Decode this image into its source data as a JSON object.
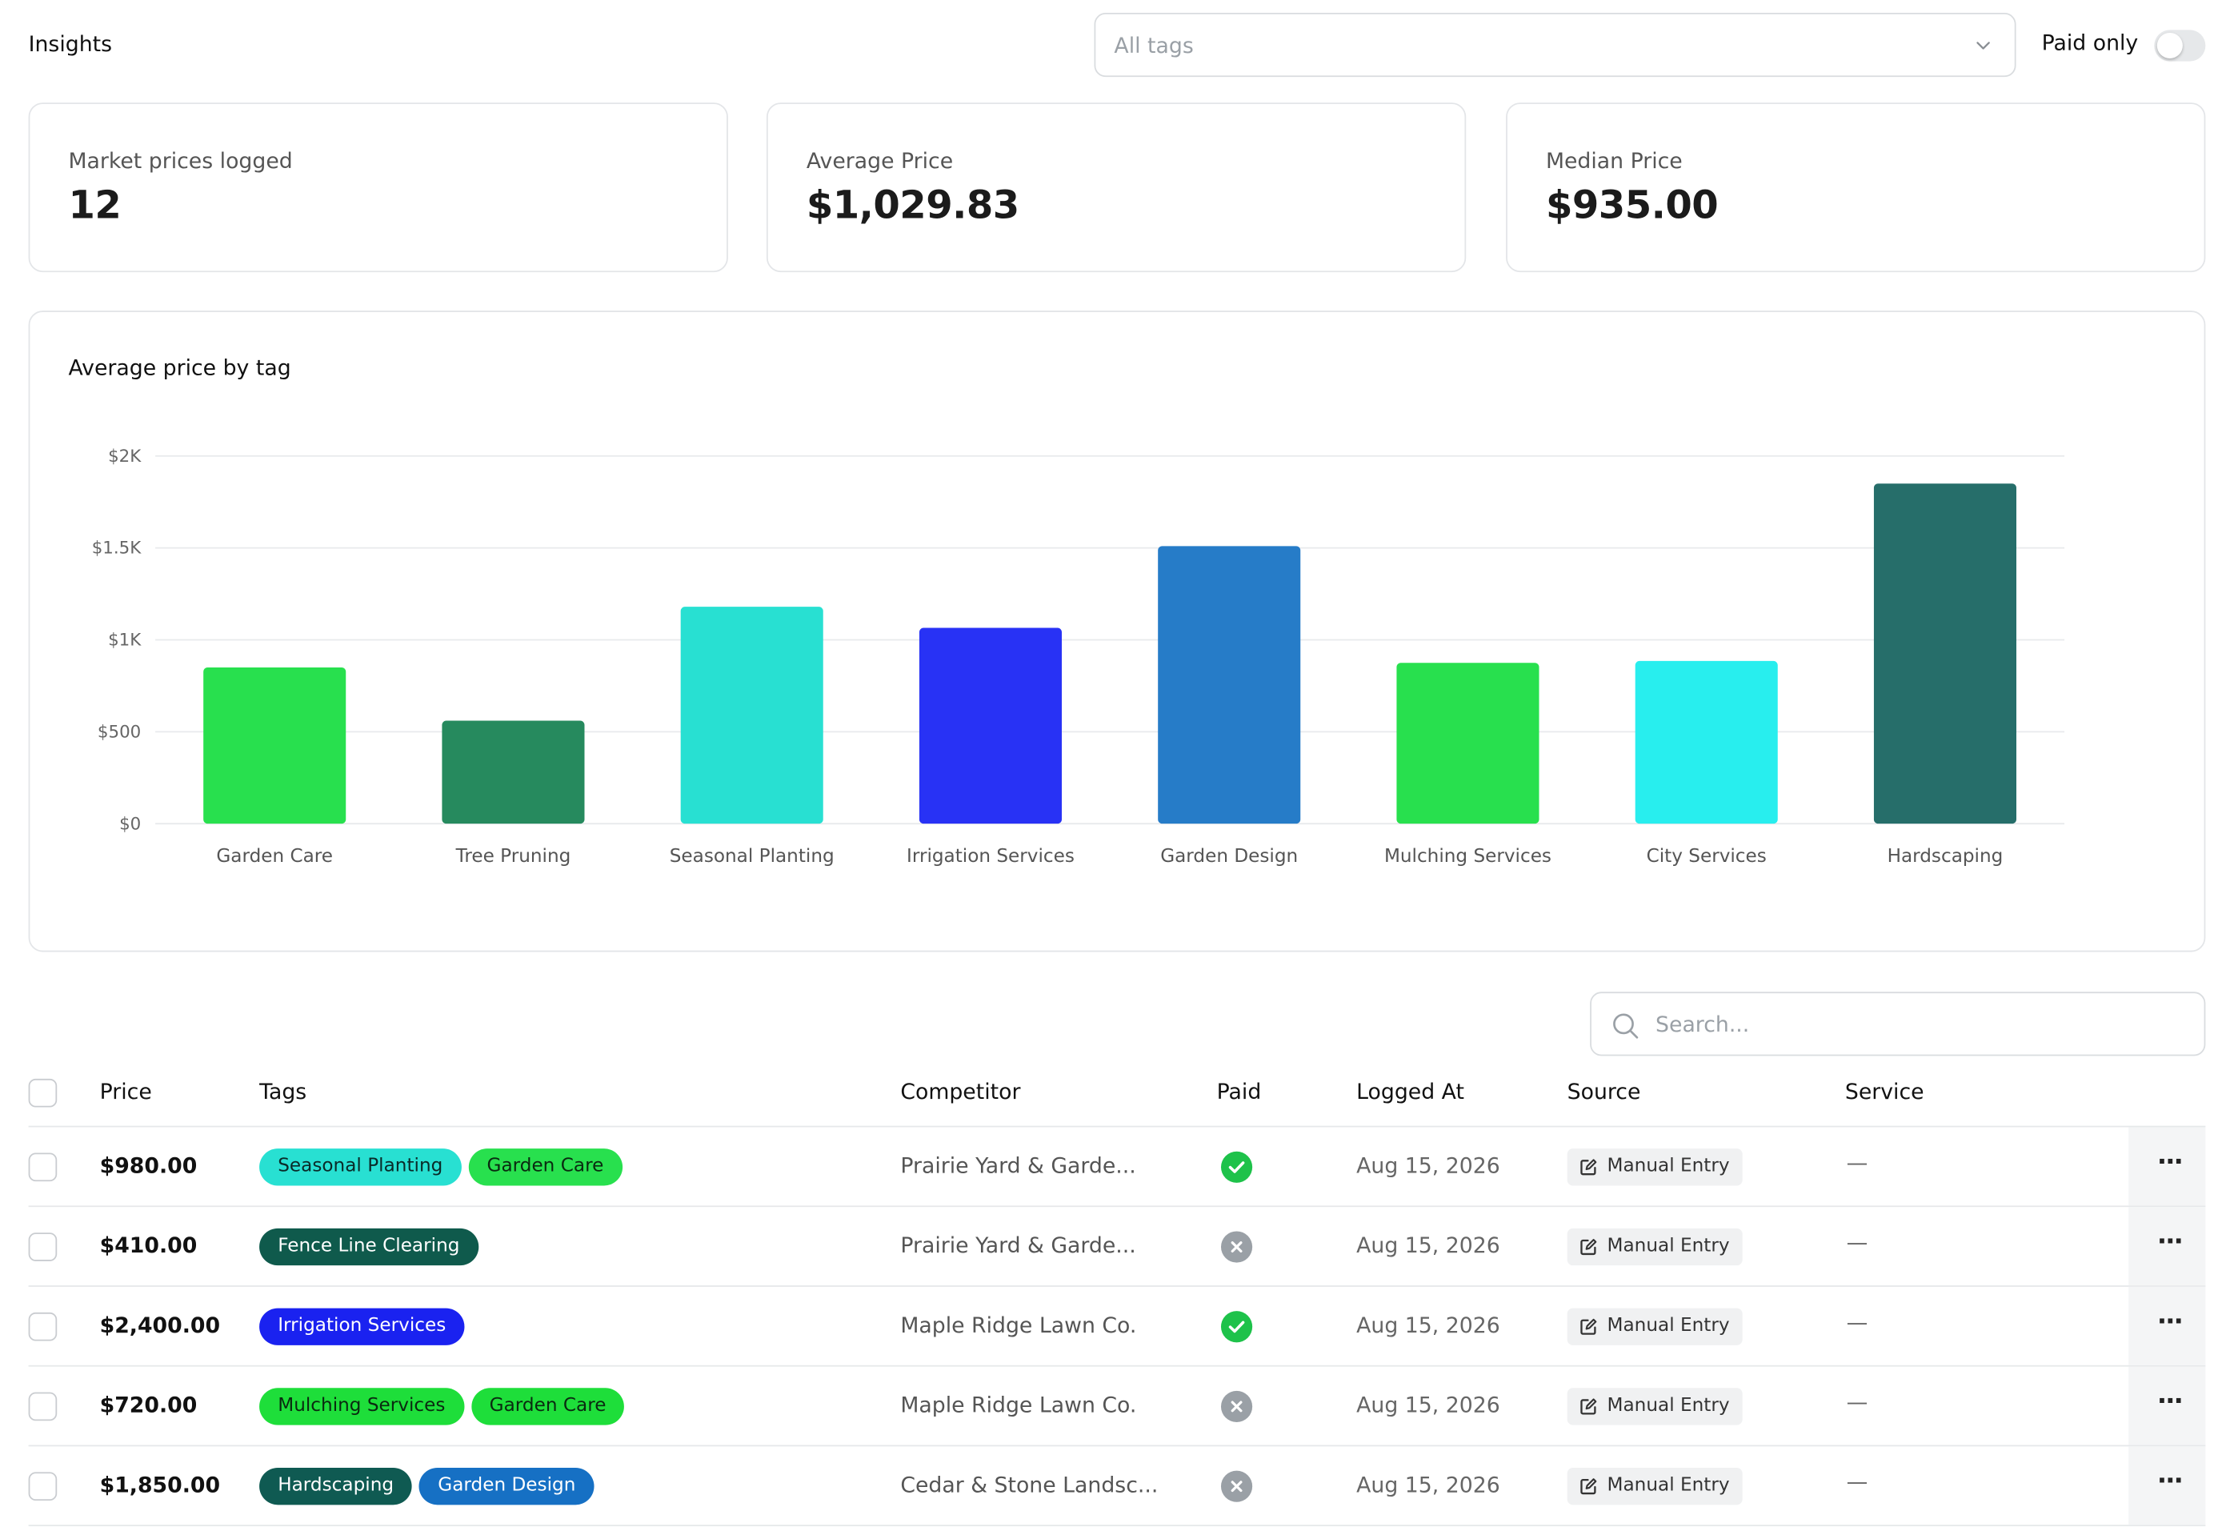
{
  "header": {
    "title": "Insights",
    "tag_filter_placeholder": "All tags",
    "paid_only_label": "Paid only"
  },
  "stats": [
    {
      "label": "Market prices logged",
      "value": "12"
    },
    {
      "label": "Average Price",
      "value": "$1,029.83"
    },
    {
      "label": "Median Price",
      "value": "$935.00"
    }
  ],
  "chart": {
    "title": "Average price by tag"
  },
  "chart_data": {
    "type": "bar",
    "title": "Average price by tag",
    "categories": [
      "Garden Care",
      "Tree Pruning",
      "Seasonal Planting",
      "Irrigation Services",
      "Garden Design",
      "Mulching Services",
      "City Services",
      "Hardscaping"
    ],
    "values": [
      850,
      560,
      1180,
      1065,
      1510,
      875,
      885,
      1850
    ],
    "colors": [
      "#28e04e",
      "#268a5e",
      "#28e0d2",
      "#2832f5",
      "#267cc8",
      "#28e04e",
      "#28eeee",
      "#266e6a"
    ],
    "ylim": [
      0,
      2000
    ],
    "yticks": [
      0,
      500,
      1000,
      1500,
      2000
    ],
    "ytick_labels": [
      "$0",
      "$500",
      "$1K",
      "$1.5K",
      "$2K"
    ],
    "grid": true,
    "xlabel": "",
    "ylabel": ""
  },
  "search": {
    "placeholder": "Search..."
  },
  "table": {
    "columns": [
      "Price",
      "Tags",
      "Competitor",
      "Paid",
      "Logged At",
      "Source",
      "Service"
    ],
    "rows": [
      {
        "price": "$980.00",
        "tags": [
          {
            "label": "Seasonal Planting",
            "bg": "#28e0d2",
            "fg": "#0a2a28"
          },
          {
            "label": "Garden Care",
            "bg": "#28e04e",
            "fg": "#0a2a10"
          }
        ],
        "competitor": "Prairie Yard & Garde...",
        "paid": true,
        "logged": "Aug 15, 2026",
        "source": "Manual Entry",
        "service": "—"
      },
      {
        "price": "$410.00",
        "tags": [
          {
            "label": "Fence Line Clearing",
            "bg": "#0f5a4c",
            "fg": "#ffffff"
          }
        ],
        "competitor": "Prairie Yard & Garde...",
        "paid": false,
        "logged": "Aug 15, 2026",
        "source": "Manual Entry",
        "service": "—"
      },
      {
        "price": "$2,400.00",
        "tags": [
          {
            "label": "Irrigation Services",
            "bg": "#1a22f0",
            "fg": "#ffffff"
          }
        ],
        "competitor": "Maple Ridge Lawn Co.",
        "paid": true,
        "logged": "Aug 15, 2026",
        "source": "Manual Entry",
        "service": "—"
      },
      {
        "price": "$720.00",
        "tags": [
          {
            "label": "Mulching Services",
            "bg": "#1ede3a",
            "fg": "#0a2a10"
          },
          {
            "label": "Garden Care",
            "bg": "#1ede3a",
            "fg": "#0a2a10"
          }
        ],
        "competitor": "Maple Ridge Lawn Co.",
        "paid": false,
        "logged": "Aug 15, 2026",
        "source": "Manual Entry",
        "service": "—"
      },
      {
        "price": "$1,850.00",
        "tags": [
          {
            "label": "Hardscaping",
            "bg": "#0f5a52",
            "fg": "#ffffff"
          },
          {
            "label": "Garden Design",
            "bg": "#1670c4",
            "fg": "#ffffff"
          }
        ],
        "competitor": "Cedar & Stone Landsc...",
        "paid": false,
        "logged": "Aug 15, 2026",
        "source": "Manual Entry",
        "service": "—"
      }
    ]
  },
  "colors": {
    "paid_yes": "#1ec24a",
    "paid_no": "#9aa0a6"
  },
  "icons": {
    "chevron": "chevron-down-icon",
    "search": "search-icon",
    "paid_yes": "check-circle-icon",
    "paid_no": "x-circle-icon",
    "source": "edit-icon",
    "actions": "more-horizontal-icon"
  }
}
